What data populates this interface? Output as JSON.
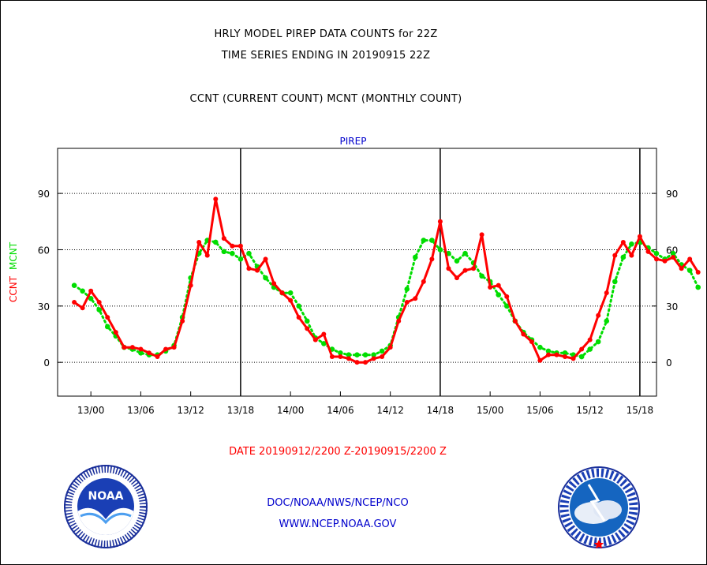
{
  "header": {
    "line1": "HRLY MODEL PIREP DATA COUNTS for 22Z",
    "line2": "TIME SERIES ENDING IN 20190915 22Z",
    "line3": "CCNT (CURRENT COUNT) MCNT (MONTHLY COUNT)"
  },
  "footer": {
    "date_range": "DATE 20190912/2200 Z-20190915/2200 Z",
    "org": "DOC/NOAA/NWS/NCEP/NCO",
    "url": "WWW.NCEP.NOAA.GOV"
  },
  "logos": {
    "left_name": "NOAA",
    "right_name": "NATIONAL WEATHER SERVICE"
  },
  "colors": {
    "ccnt": "#ff0000",
    "mcnt": "#00dd00",
    "subtitle": "#0000cc",
    "date": "#ff0000",
    "footer": "#0000cc"
  },
  "chart_data": {
    "type": "line",
    "title": "PIREP",
    "ylabel_parts": [
      "CCNT",
      "MCNT"
    ],
    "ylim": [
      -18,
      114
    ],
    "yticks": [
      0,
      30,
      60,
      90
    ],
    "xlim": [
      -2,
      70
    ],
    "x_tick_hours": [
      2,
      8,
      14,
      20,
      26,
      32,
      38,
      44,
      50,
      56,
      62,
      68
    ],
    "x_tick_labels": [
      "13/00",
      "13/06",
      "13/12",
      "13/18",
      "14/00",
      "14/06",
      "14/12",
      "14/18",
      "15/00",
      "15/06",
      "15/12",
      "15/18"
    ],
    "x_day_boundaries_hours": [
      20,
      44,
      68
    ],
    "x_unit": "hours from 20190912/2200 Z",
    "grid": "dotted horizontal at 30, 60, 90",
    "series": [
      {
        "name": "CCNT",
        "values": [
          32,
          29,
          38,
          32,
          24,
          16,
          8,
          8,
          7,
          5,
          3,
          7,
          8,
          22,
          41,
          64,
          57,
          87,
          66,
          62,
          62,
          50,
          49,
          55,
          42,
          37,
          33,
          24,
          18,
          12,
          15,
          3,
          3,
          2,
          0,
          0,
          2,
          3,
          8,
          22,
          32,
          34,
          43,
          55,
          75,
          50,
          45,
          49,
          50,
          68,
          40,
          41,
          35,
          22,
          15,
          11,
          1,
          4,
          4,
          3,
          2,
          7,
          12,
          25,
          37,
          57,
          64,
          57,
          67,
          59,
          55,
          54,
          56,
          50,
          55,
          48
        ]
      },
      {
        "name": "MCNT",
        "values": [
          41,
          38,
          34,
          28,
          19,
          14,
          8,
          7,
          5,
          4,
          4,
          6,
          9,
          24,
          45,
          58,
          65,
          64,
          59,
          58,
          55,
          58,
          51,
          45,
          40,
          37,
          37,
          30,
          22,
          13,
          10,
          7,
          5,
          4,
          4,
          4,
          4,
          6,
          9,
          24,
          39,
          56,
          65,
          65,
          60,
          58,
          54,
          58,
          53,
          46,
          43,
          36,
          30,
          22,
          16,
          12,
          8,
          6,
          5,
          5,
          4,
          3,
          7,
          11,
          22,
          43,
          56,
          63,
          64,
          61,
          58,
          55,
          58,
          52,
          49,
          40
        ]
      }
    ]
  }
}
